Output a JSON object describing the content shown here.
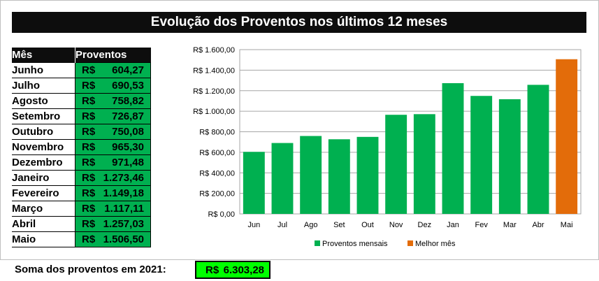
{
  "title": "Evolução dos Proventos nos últimos 12 meses",
  "table": {
    "header_month": "Mês",
    "header_value": "Proventos",
    "currency": "R$",
    "rows": [
      {
        "month": "Junho",
        "value": "604,27"
      },
      {
        "month": "Julho",
        "value": "690,53"
      },
      {
        "month": "Agosto",
        "value": "758,82"
      },
      {
        "month": "Setembro",
        "value": "726,87"
      },
      {
        "month": "Outubro",
        "value": "750,08"
      },
      {
        "month": "Novembro",
        "value": "965,30"
      },
      {
        "month": "Dezembro",
        "value": "971,48"
      },
      {
        "month": "Janeiro",
        "value": "1.273,46"
      },
      {
        "month": "Fevereiro",
        "value": "1.149,18"
      },
      {
        "month": "Março",
        "value": "1.117,11"
      },
      {
        "month": "Abril",
        "value": "1.257,03"
      },
      {
        "month": "Maio",
        "value": "1.506,50"
      }
    ]
  },
  "summary": {
    "label": "Soma dos proventos em 2021:",
    "currency": "R$",
    "value": "6.303,28"
  },
  "chart_data": {
    "type": "bar",
    "categories": [
      "Jun",
      "Jul",
      "Ago",
      "Set",
      "Out",
      "Nov",
      "Dez",
      "Jan",
      "Fev",
      "Mar",
      "Abr",
      "Mai"
    ],
    "series": [
      {
        "name": "Proventos mensais",
        "color": "#00b050",
        "values": [
          604.27,
          690.53,
          758.82,
          726.87,
          750.08,
          965.3,
          971.48,
          1273.46,
          1149.18,
          1117.11,
          1257.03,
          null
        ]
      },
      {
        "name": "Melhor mês",
        "color": "#e36c0a",
        "values": [
          null,
          null,
          null,
          null,
          null,
          null,
          null,
          null,
          null,
          null,
          null,
          1506.5
        ]
      }
    ],
    "ylim": [
      0,
      1600
    ],
    "yticks": [
      0,
      200,
      400,
      600,
      800,
      1000,
      1200,
      1400,
      1600
    ],
    "ytick_labels": [
      "R$ 0,00",
      "R$ 200,00",
      "R$ 400,00",
      "R$ 600,00",
      "R$ 800,00",
      "R$ 1.000,00",
      "R$ 1.200,00",
      "R$ 1.400,00",
      "R$ 1.600,00"
    ],
    "grid": true,
    "legend": "bottom"
  }
}
